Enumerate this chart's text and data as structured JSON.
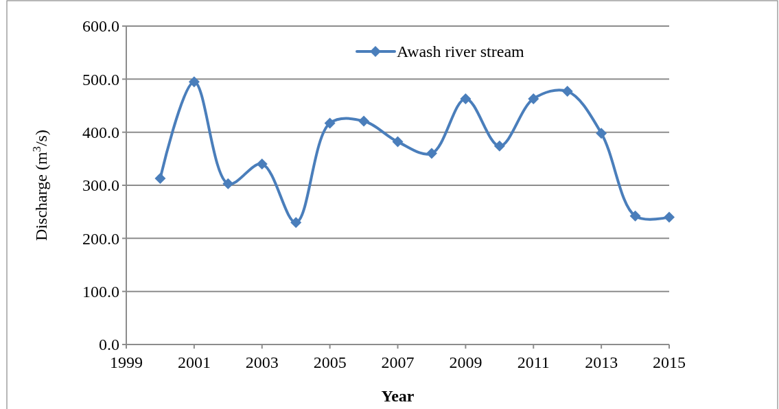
{
  "chart_data": {
    "type": "line",
    "xlabel": "Year",
    "ylabel": "Discharge (m$^{3}$/s)",
    "x": [
      2000,
      2001,
      2002,
      2003,
      2004,
      2005,
      2006,
      2007,
      2008,
      2009,
      2010,
      2011,
      2012,
      2013,
      2014,
      2015
    ],
    "series": [
      {
        "name": "Awash river stream",
        "color": "#4a7ebb",
        "values": [
          313,
          495,
          303,
          340,
          230,
          417,
          421,
          382,
          360,
          463,
          374,
          463,
          477,
          398,
          242,
          240
        ]
      }
    ],
    "xlim": [
      1999,
      2015
    ],
    "xticks": [
      1999,
      2001,
      2003,
      2005,
      2007,
      2009,
      2011,
      2013,
      2015
    ],
    "ylim": [
      0,
      600
    ],
    "yticks": [
      {
        "value": 0,
        "label": "0.0"
      },
      {
        "value": 100,
        "label": "100.0"
      },
      {
        "value": 200,
        "label": "200.0"
      },
      {
        "value": 300,
        "label": "300.0"
      },
      {
        "value": 400,
        "label": "400.0"
      },
      {
        "value": 500,
        "label": "500.0"
      },
      {
        "value": 600,
        "label": "600.0"
      }
    ],
    "grid": "y",
    "legend": "top",
    "marker": "diamond",
    "line_style": "solid"
  }
}
